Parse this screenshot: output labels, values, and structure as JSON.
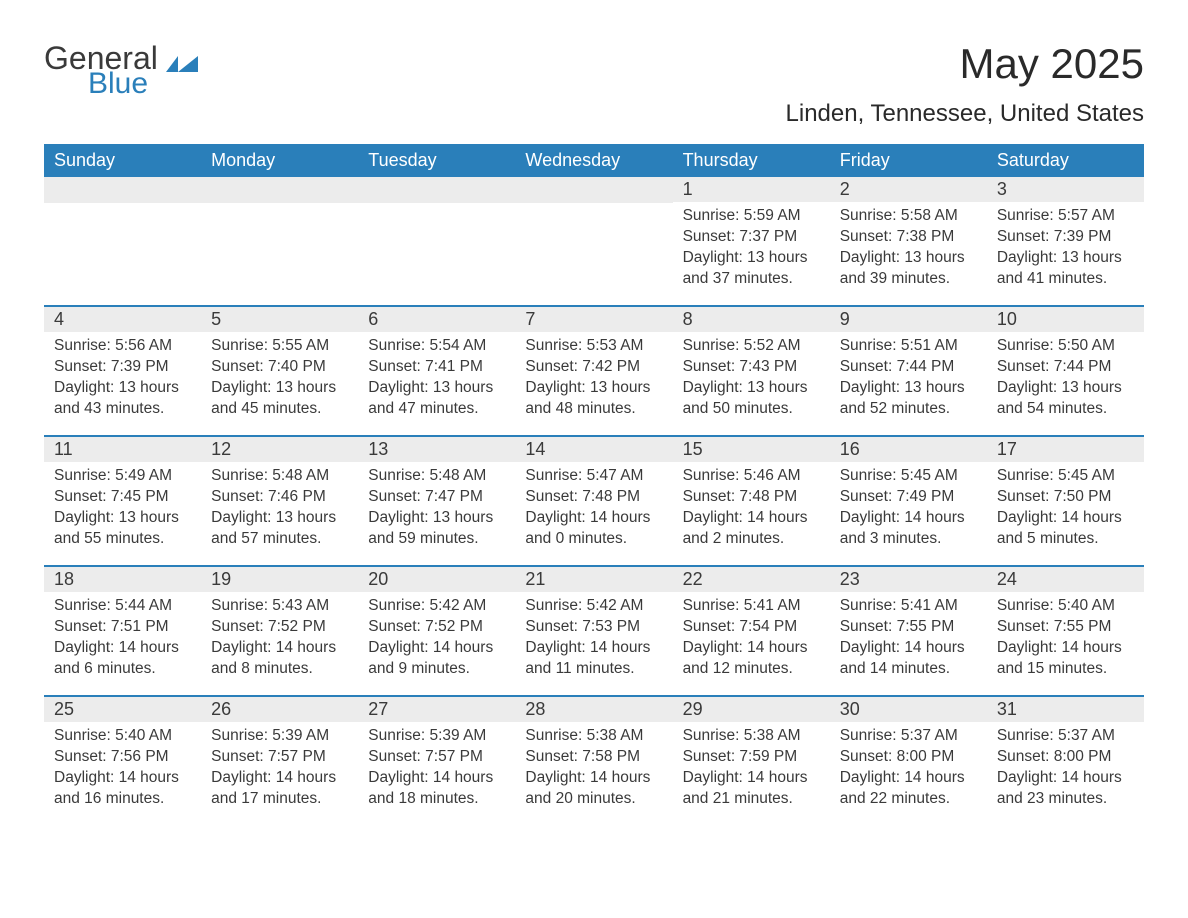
{
  "logo": {
    "general": "General",
    "blue": "Blue"
  },
  "title": "May 2025",
  "location": "Linden, Tennessee, United States",
  "colors": {
    "header_bg": "#2a7fba",
    "header_text": "#ffffff",
    "daynum_bg": "#ececec",
    "text": "#3a3a3a",
    "page_bg": "#ffffff"
  },
  "dayNames": [
    "Sunday",
    "Monday",
    "Tuesday",
    "Wednesday",
    "Thursday",
    "Friday",
    "Saturday"
  ],
  "weeks": [
    [
      null,
      null,
      null,
      null,
      {
        "n": "1",
        "sr": "Sunrise: 5:59 AM",
        "ss": "Sunset: 7:37 PM",
        "dl": "Daylight: 13 hours and 37 minutes."
      },
      {
        "n": "2",
        "sr": "Sunrise: 5:58 AM",
        "ss": "Sunset: 7:38 PM",
        "dl": "Daylight: 13 hours and 39 minutes."
      },
      {
        "n": "3",
        "sr": "Sunrise: 5:57 AM",
        "ss": "Sunset: 7:39 PM",
        "dl": "Daylight: 13 hours and 41 minutes."
      }
    ],
    [
      {
        "n": "4",
        "sr": "Sunrise: 5:56 AM",
        "ss": "Sunset: 7:39 PM",
        "dl": "Daylight: 13 hours and 43 minutes."
      },
      {
        "n": "5",
        "sr": "Sunrise: 5:55 AM",
        "ss": "Sunset: 7:40 PM",
        "dl": "Daylight: 13 hours and 45 minutes."
      },
      {
        "n": "6",
        "sr": "Sunrise: 5:54 AM",
        "ss": "Sunset: 7:41 PM",
        "dl": "Daylight: 13 hours and 47 minutes."
      },
      {
        "n": "7",
        "sr": "Sunrise: 5:53 AM",
        "ss": "Sunset: 7:42 PM",
        "dl": "Daylight: 13 hours and 48 minutes."
      },
      {
        "n": "8",
        "sr": "Sunrise: 5:52 AM",
        "ss": "Sunset: 7:43 PM",
        "dl": "Daylight: 13 hours and 50 minutes."
      },
      {
        "n": "9",
        "sr": "Sunrise: 5:51 AM",
        "ss": "Sunset: 7:44 PM",
        "dl": "Daylight: 13 hours and 52 minutes."
      },
      {
        "n": "10",
        "sr": "Sunrise: 5:50 AM",
        "ss": "Sunset: 7:44 PM",
        "dl": "Daylight: 13 hours and 54 minutes."
      }
    ],
    [
      {
        "n": "11",
        "sr": "Sunrise: 5:49 AM",
        "ss": "Sunset: 7:45 PM",
        "dl": "Daylight: 13 hours and 55 minutes."
      },
      {
        "n": "12",
        "sr": "Sunrise: 5:48 AM",
        "ss": "Sunset: 7:46 PM",
        "dl": "Daylight: 13 hours and 57 minutes."
      },
      {
        "n": "13",
        "sr": "Sunrise: 5:48 AM",
        "ss": "Sunset: 7:47 PM",
        "dl": "Daylight: 13 hours and 59 minutes."
      },
      {
        "n": "14",
        "sr": "Sunrise: 5:47 AM",
        "ss": "Sunset: 7:48 PM",
        "dl": "Daylight: 14 hours and 0 minutes."
      },
      {
        "n": "15",
        "sr": "Sunrise: 5:46 AM",
        "ss": "Sunset: 7:48 PM",
        "dl": "Daylight: 14 hours and 2 minutes."
      },
      {
        "n": "16",
        "sr": "Sunrise: 5:45 AM",
        "ss": "Sunset: 7:49 PM",
        "dl": "Daylight: 14 hours and 3 minutes."
      },
      {
        "n": "17",
        "sr": "Sunrise: 5:45 AM",
        "ss": "Sunset: 7:50 PM",
        "dl": "Daylight: 14 hours and 5 minutes."
      }
    ],
    [
      {
        "n": "18",
        "sr": "Sunrise: 5:44 AM",
        "ss": "Sunset: 7:51 PM",
        "dl": "Daylight: 14 hours and 6 minutes."
      },
      {
        "n": "19",
        "sr": "Sunrise: 5:43 AM",
        "ss": "Sunset: 7:52 PM",
        "dl": "Daylight: 14 hours and 8 minutes."
      },
      {
        "n": "20",
        "sr": "Sunrise: 5:42 AM",
        "ss": "Sunset: 7:52 PM",
        "dl": "Daylight: 14 hours and 9 minutes."
      },
      {
        "n": "21",
        "sr": "Sunrise: 5:42 AM",
        "ss": "Sunset: 7:53 PM",
        "dl": "Daylight: 14 hours and 11 minutes."
      },
      {
        "n": "22",
        "sr": "Sunrise: 5:41 AM",
        "ss": "Sunset: 7:54 PM",
        "dl": "Daylight: 14 hours and 12 minutes."
      },
      {
        "n": "23",
        "sr": "Sunrise: 5:41 AM",
        "ss": "Sunset: 7:55 PM",
        "dl": "Daylight: 14 hours and 14 minutes."
      },
      {
        "n": "24",
        "sr": "Sunrise: 5:40 AM",
        "ss": "Sunset: 7:55 PM",
        "dl": "Daylight: 14 hours and 15 minutes."
      }
    ],
    [
      {
        "n": "25",
        "sr": "Sunrise: 5:40 AM",
        "ss": "Sunset: 7:56 PM",
        "dl": "Daylight: 14 hours and 16 minutes."
      },
      {
        "n": "26",
        "sr": "Sunrise: 5:39 AM",
        "ss": "Sunset: 7:57 PM",
        "dl": "Daylight: 14 hours and 17 minutes."
      },
      {
        "n": "27",
        "sr": "Sunrise: 5:39 AM",
        "ss": "Sunset: 7:57 PM",
        "dl": "Daylight: 14 hours and 18 minutes."
      },
      {
        "n": "28",
        "sr": "Sunrise: 5:38 AM",
        "ss": "Sunset: 7:58 PM",
        "dl": "Daylight: 14 hours and 20 minutes."
      },
      {
        "n": "29",
        "sr": "Sunrise: 5:38 AM",
        "ss": "Sunset: 7:59 PM",
        "dl": "Daylight: 14 hours and 21 minutes."
      },
      {
        "n": "30",
        "sr": "Sunrise: 5:37 AM",
        "ss": "Sunset: 8:00 PM",
        "dl": "Daylight: 14 hours and 22 minutes."
      },
      {
        "n": "31",
        "sr": "Sunrise: 5:37 AM",
        "ss": "Sunset: 8:00 PM",
        "dl": "Daylight: 14 hours and 23 minutes."
      }
    ]
  ]
}
